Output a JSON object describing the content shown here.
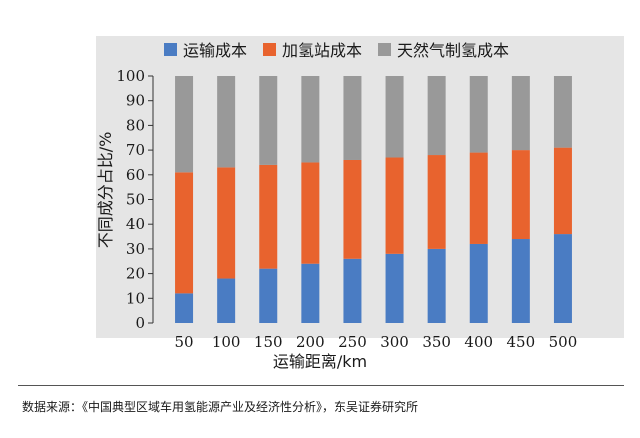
{
  "chart_data": {
    "type": "bar",
    "stacked": true,
    "categories": [
      "50",
      "100",
      "150",
      "200",
      "250",
      "300",
      "350",
      "400",
      "450",
      "500"
    ],
    "series": [
      {
        "name": "运输成本",
        "color": "#4a7cc3",
        "values": [
          12,
          18,
          22,
          24,
          26,
          28,
          30,
          32,
          34,
          36
        ]
      },
      {
        "name": "加氢站成本",
        "color": "#e8632e",
        "values": [
          49,
          45,
          42,
          41,
          40,
          39,
          38,
          37,
          36,
          35
        ]
      },
      {
        "name": "天然气制氢成本",
        "color": "#999999",
        "values": [
          39,
          37,
          36,
          35,
          34,
          33,
          32,
          31,
          30,
          29
        ]
      }
    ],
    "xlabel": "运输距离/km",
    "ylabel": "不同成分占比/%",
    "ylim": [
      0,
      100
    ],
    "yticks": [
      "0",
      "10",
      "20",
      "30",
      "40",
      "50",
      "60",
      "70",
      "80",
      "90",
      "100"
    ],
    "legend_position": "top",
    "grid": false
  },
  "source_note": "数据来源：《中国典型区域车用氢能源产业及经济性分析》，东吴证券研究所"
}
